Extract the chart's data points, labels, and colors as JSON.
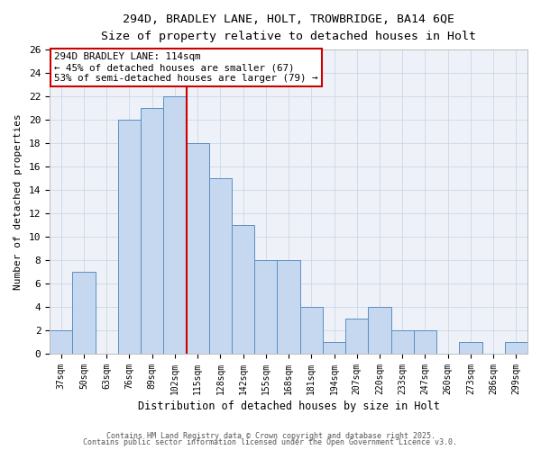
{
  "title": "294D, BRADLEY LANE, HOLT, TROWBRIDGE, BA14 6QE",
  "subtitle": "Size of property relative to detached houses in Holt",
  "xlabel": "Distribution of detached houses by size in Holt",
  "ylabel": "Number of detached properties",
  "categories": [
    "37sqm",
    "50sqm",
    "63sqm",
    "76sqm",
    "89sqm",
    "102sqm",
    "115sqm",
    "128sqm",
    "142sqm",
    "155sqm",
    "168sqm",
    "181sqm",
    "194sqm",
    "207sqm",
    "220sqm",
    "233sqm",
    "247sqm",
    "260sqm",
    "273sqm",
    "286sqm",
    "299sqm"
  ],
  "values": [
    2,
    7,
    0,
    20,
    21,
    22,
    18,
    15,
    11,
    8,
    8,
    4,
    1,
    3,
    4,
    2,
    2,
    0,
    1,
    0,
    1
  ],
  "bar_color": "#c5d8f0",
  "bar_edge_color": "#5b8ec4",
  "grid_color": "#c8d8e8",
  "bg_color": "#eef2f8",
  "red_line_color": "#cc0000",
  "red_line_index": 6,
  "annotation_title": "294D BRADLEY LANE: 114sqm",
  "annotation_line1": "← 45% of detached houses are smaller (67)",
  "annotation_line2": "53% of semi-detached houses are larger (79) →",
  "ylim": [
    0,
    26
  ],
  "yticks": [
    0,
    2,
    4,
    6,
    8,
    10,
    12,
    14,
    16,
    18,
    20,
    22,
    24,
    26
  ],
  "footer_line1": "Contains HM Land Registry data © Crown copyright and database right 2025.",
  "footer_line2": "Contains public sector information licensed under the Open Government Licence v3.0."
}
